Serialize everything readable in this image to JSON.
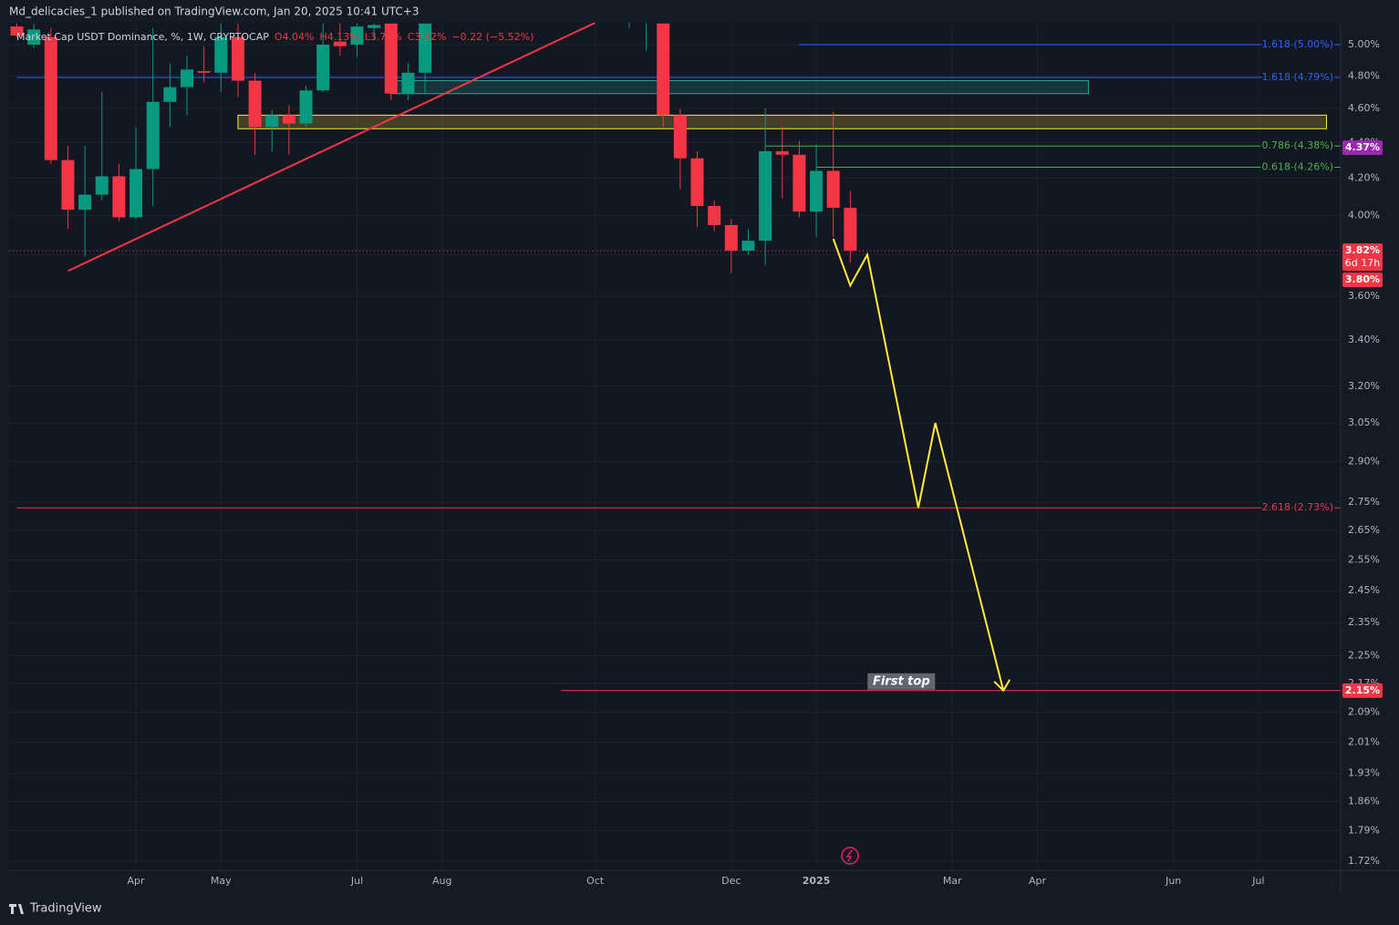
{
  "header": {
    "publisher": "Md_delicacies_1 published on TradingView.com, Jan 20, 2025 10:41 UTC+3"
  },
  "footer": {
    "brand": "TradingView"
  },
  "chart_data": {
    "type": "candlestick",
    "title": "Market Cap USDT Dominance, %, 1W, CRYPTOCAP",
    "ohlc_legend": [
      "O4.04%",
      "H4.13%",
      "L3.76%",
      "C3.82%",
      "−0.22 (−5.52%)"
    ],
    "categories": [
      null,
      null,
      null,
      null,
      null,
      null,
      null,
      "Apr",
      null,
      null,
      null,
      null,
      "May",
      null,
      null,
      null,
      null,
      null,
      null,
      null,
      "Jul",
      null,
      null,
      null,
      null,
      "Aug",
      null,
      null,
      null,
      null,
      null,
      null,
      null,
      null,
      "Oct",
      null,
      null,
      null,
      null,
      null,
      null,
      null,
      "Dec",
      null,
      null,
      null,
      null,
      "2025",
      null,
      null,
      null,
      null,
      null,
      null,
      null,
      "Mar",
      null,
      null,
      null,
      null,
      "Apr",
      null,
      null,
      null,
      null,
      null,
      null,
      null,
      "Jun",
      null,
      null,
      null,
      null,
      "Jul",
      null,
      null,
      null,
      null
    ],
    "open": [
      5.12,
      5.0,
      5.05,
      4.3,
      4.03,
      4.11,
      4.21,
      3.99,
      4.25,
      4.64,
      4.73,
      4.83,
      4.82,
      5.05,
      4.77,
      4.49,
      4.56,
      4.51,
      4.71,
      5.02,
      5.0,
      5.11,
      5.14,
      4.69,
      4.82,
      null,
      null,
      null,
      null,
      null,
      null,
      null,
      null,
      null,
      null,
      null,
      null,
      null,
      5.14,
      4.56,
      4.31,
      4.05,
      3.95,
      3.82,
      3.87,
      4.35,
      4.33,
      4.02,
      4.24,
      4.04,
      null,
      null,
      null,
      null,
      null,
      null,
      null,
      null,
      null,
      null,
      null,
      null,
      null,
      null,
      null,
      null,
      null,
      null,
      null,
      null,
      null,
      null,
      null,
      null,
      null,
      null,
      null,
      null
    ],
    "high": [
      5.14,
      5.14,
      5.11,
      4.38,
      4.38,
      4.7,
      4.28,
      4.49,
      5.11,
      4.88,
      4.93,
      4.99,
      5.14,
      5.14,
      4.82,
      4.59,
      4.62,
      4.74,
      5.14,
      5.14,
      5.14,
      5.14,
      5.14,
      4.88,
      5.14,
      null,
      null,
      null,
      null,
      null,
      null,
      null,
      null,
      null,
      null,
      null,
      null,
      null,
      5.14,
      4.6,
      4.35,
      4.08,
      3.98,
      3.93,
      4.6,
      4.49,
      4.41,
      4.39,
      4.58,
      4.13,
      null,
      null,
      null,
      null,
      null,
      null,
      null,
      null,
      null,
      null,
      null,
      null,
      null,
      null,
      null,
      null,
      null,
      null,
      null,
      null,
      null,
      null,
      null,
      null,
      null,
      null,
      null,
      null
    ],
    "low": [
      5.05,
      4.98,
      4.28,
      3.93,
      3.79,
      4.08,
      3.97,
      3.98,
      4.05,
      4.49,
      4.56,
      4.76,
      4.7,
      4.67,
      4.33,
      4.35,
      4.33,
      4.49,
      4.7,
      4.93,
      4.92,
      5.03,
      4.65,
      4.65,
      4.69,
      null,
      null,
      null,
      null,
      null,
      null,
      null,
      null,
      null,
      null,
      null,
      5.11,
      4.96,
      4.49,
      4.14,
      3.94,
      3.92,
      3.71,
      3.8,
      3.75,
      4.09,
      3.99,
      3.89,
      3.89,
      3.76,
      null,
      null,
      null,
      null,
      null,
      null,
      null,
      null,
      null,
      null,
      null,
      null,
      null,
      null,
      null,
      null,
      null,
      null,
      null,
      null,
      null,
      null,
      null,
      null,
      null,
      null,
      null,
      null
    ],
    "close": [
      5.06,
      5.1,
      4.3,
      4.03,
      4.11,
      4.21,
      3.99,
      4.25,
      4.64,
      4.73,
      4.84,
      4.82,
      5.05,
      4.77,
      4.49,
      4.56,
      4.51,
      4.71,
      5.0,
      4.99,
      5.12,
      5.13,
      4.69,
      4.82,
      5.14,
      null,
      null,
      null,
      null,
      null,
      null,
      null,
      null,
      null,
      null,
      null,
      null,
      null,
      4.56,
      4.31,
      4.05,
      3.95,
      3.82,
      3.87,
      4.35,
      4.33,
      4.02,
      4.24,
      4.04,
      3.82,
      null,
      null,
      null,
      null,
      null,
      null,
      null,
      null,
      null,
      null,
      null,
      null,
      null,
      null,
      null,
      null,
      null,
      null,
      null,
      null,
      null,
      null,
      null,
      null,
      null,
      null,
      null,
      null
    ],
    "up_color": "#089981",
    "down_color": "#f23645",
    "log_y": true,
    "ylim": [
      1.7,
      5.145
    ],
    "yticks": [
      {
        "value": 5,
        "label": "5.00%"
      },
      {
        "value": 4.8,
        "label": "4.80%"
      },
      {
        "value": 4.6,
        "label": "4.60%"
      },
      {
        "value": 4.4,
        "label": "4.40%"
      },
      {
        "value": 4.2,
        "label": "4.20%"
      },
      {
        "value": 4,
        "label": "4.00%"
      },
      {
        "value": 3.8,
        "label": "3.80%"
      },
      {
        "value": 3.6,
        "label": "3.60%"
      },
      {
        "value": 3.4,
        "label": "3.40%"
      },
      {
        "value": 3.2,
        "label": "3.20%"
      },
      {
        "value": 3.05,
        "label": "3.05%"
      },
      {
        "value": 2.9,
        "label": "2.90%"
      },
      {
        "value": 2.75,
        "label": "2.75%"
      },
      {
        "value": 2.65,
        "label": "2.65%"
      },
      {
        "value": 2.55,
        "label": "2.55%"
      },
      {
        "value": 2.45,
        "label": "2.45%"
      },
      {
        "value": 2.35,
        "label": "2.35%"
      },
      {
        "value": 2.25,
        "label": "2.25%"
      },
      {
        "value": 2.17,
        "label": "2.17%"
      },
      {
        "value": 2.09,
        "label": "2.09%"
      },
      {
        "value": 2.01,
        "label": "2.01%"
      },
      {
        "value": 1.93,
        "label": "1.93%"
      },
      {
        "value": 1.86,
        "label": "1.86%"
      },
      {
        "value": 1.79,
        "label": "1.79%"
      },
      {
        "value": 1.72,
        "label": "1.72%"
      }
    ],
    "grid": true,
    "levels": [
      {
        "label": "1.618 (5.00%)",
        "value": 5,
        "color": "#2962ff",
        "start": 46
      },
      {
        "label": "1.618 (4.79%)",
        "value": 4.79,
        "color": "#2962ff",
        "start": 0
      },
      {
        "label": "0.786 (4.38%)",
        "value": 4.38,
        "color": "#4caf50",
        "start": 44
      },
      {
        "label": "0.618 (4.26%)",
        "value": 4.26,
        "color": "#4caf50",
        "start": 47
      },
      {
        "label": "2.618 (2.73%)",
        "value": 2.73,
        "color": "#f23645",
        "start": 0
      },
      {
        "value": 2.15,
        "color": "#f23645",
        "start": 32
      }
    ],
    "zones": [
      {
        "top": 4.77,
        "bottom": 4.69,
        "start": 22,
        "end": 63,
        "color": "#22ab94"
      },
      {
        "top": 4.56,
        "bottom": 4.48,
        "start": 13,
        "end": 77,
        "color": "#ffeb3b"
      }
    ],
    "trendline": {
      "color": "#f23645",
      "points": [
        {
          "x": 3,
          "y": 3.72
        },
        {
          "x": 34,
          "y": 5.145
        }
      ]
    },
    "projection": {
      "color": "#ffeb3b",
      "points": [
        {
          "x": 48,
          "y": 3.88
        },
        {
          "x": 49,
          "y": 3.65
        },
        {
          "x": 50,
          "y": 3.8
        },
        {
          "x": 53,
          "y": 2.73
        },
        {
          "x": 54,
          "y": 3.05
        },
        {
          "x": 58,
          "y": 2.15
        }
      ]
    },
    "annotation": {
      "text": "First top",
      "x": 52,
      "y": 2.15
    },
    "current_price": {
      "value": 3.82,
      "label": "3.82%",
      "countdown": "6d 17h",
      "color": "#f23645"
    },
    "price_labels": [
      {
        "value": 4.37,
        "label": "4.37%",
        "color": "#9c27b0"
      },
      {
        "value": 3.8,
        "label": "3.80%",
        "color": "#f23645"
      },
      {
        "value": 2.15,
        "label": "2.15%",
        "color": "#f23645"
      }
    ]
  }
}
